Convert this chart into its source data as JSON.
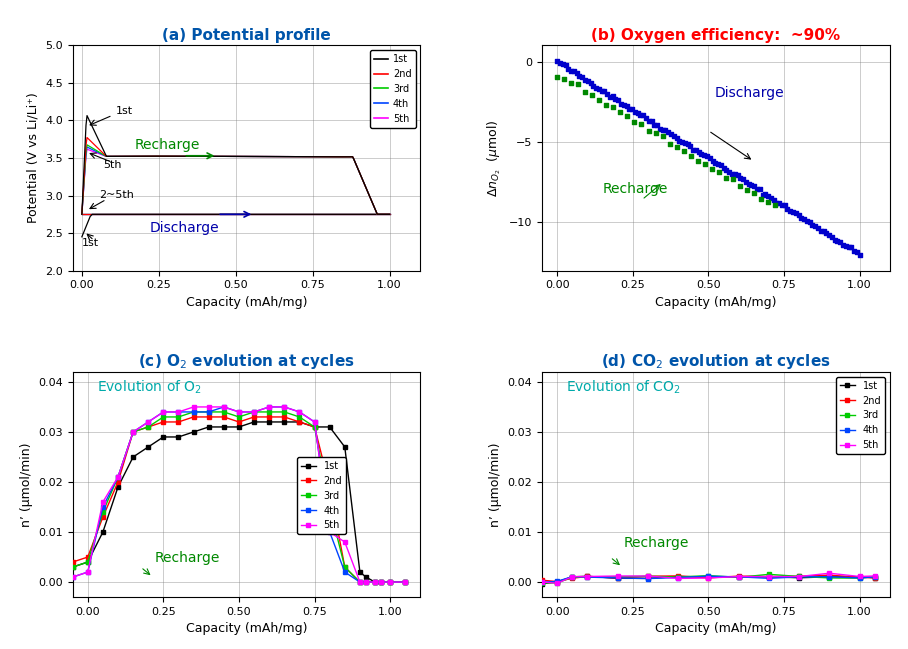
{
  "title_a": "(a) Potential profile",
  "title_b": "(b) Oxygen efficiency:  ~90%",
  "title_c": "(c) O₂ evolution at cycles",
  "title_d": "(d) CO₂ evolution at cycles",
  "xlabel": "Capacity (mAh/mg)",
  "ylabel_a": "Potential (V vs Li/Li⁺)",
  "ylabel_c": "n’ (μmol/min)",
  "ylabel_d": "n’ (μmol/min)",
  "colors": [
    "black",
    "red",
    "#00cc00",
    "#0044ff",
    "magenta"
  ],
  "legend_labels": [
    "1st",
    "2nd",
    "3rd",
    "4th",
    "5th"
  ]
}
